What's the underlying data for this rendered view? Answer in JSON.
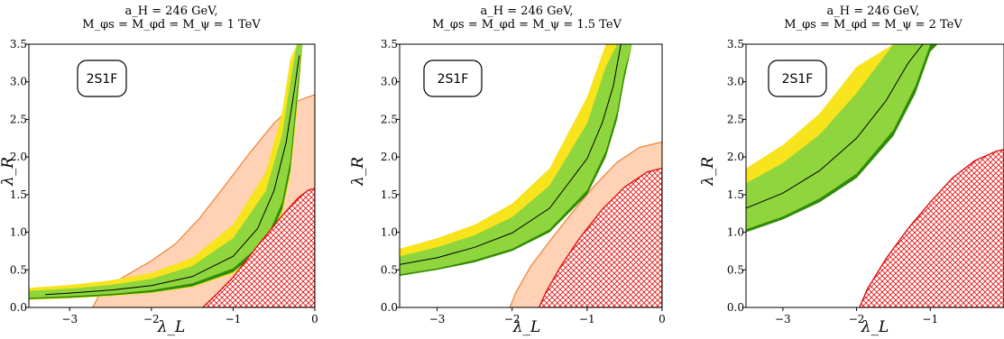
{
  "chart_data": [
    {
      "type": "area",
      "title": [
        "a_H = 246 GeV,",
        "M_φs = M_φd = M_ψ = 1 TeV"
      ],
      "badge": "2S1F",
      "xlabel": "λ_L",
      "ylabel": "λ_R",
      "xlim": [
        -3.5,
        0
      ],
      "ylim": [
        0,
        3.5
      ],
      "xticks": [
        -3,
        -2,
        -1,
        0
      ],
      "xtick_labels": [
        "−3",
        "−2",
        "−1",
        "0"
      ],
      "yticks": [
        0,
        0.5,
        1,
        1.5,
        2,
        2.5,
        3,
        3.5
      ],
      "ytick_labels": [
        "0.0",
        "0.5",
        "1.0",
        "1.5",
        "2.0",
        "2.5",
        "3.0",
        "3.5"
      ],
      "series": [
        {
          "role": "band_yellow",
          "color": "#f7e41c",
          "x": [
            -3.5,
            -3.0,
            -2.5,
            -2.0,
            -1.5,
            -1.0,
            -0.6,
            -0.4,
            -0.3,
            -0.22,
            -0.15
          ],
          "lo": [
            0.1,
            0.12,
            0.15,
            0.19,
            0.27,
            0.45,
            0.8,
            1.25,
            1.75,
            2.6,
            3.5
          ],
          "hi": [
            0.26,
            0.3,
            0.36,
            0.46,
            0.66,
            1.1,
            1.8,
            2.6,
            3.3,
            3.5,
            3.5
          ]
        },
        {
          "role": "band_green",
          "color": "#8fd63e",
          "x": [
            -3.5,
            -3.0,
            -2.5,
            -2.0,
            -1.5,
            -1.0,
            -0.6,
            -0.4,
            -0.3,
            -0.22,
            -0.15
          ],
          "lo": [
            0.13,
            0.15,
            0.18,
            0.23,
            0.32,
            0.52,
            0.9,
            1.4,
            1.95,
            2.85,
            3.5
          ],
          "hi": [
            0.22,
            0.25,
            0.3,
            0.38,
            0.55,
            0.92,
            1.55,
            2.3,
            3.0,
            3.5,
            3.5
          ]
        },
        {
          "role": "band_darkgreen",
          "color": "#2e8b0c",
          "x": [
            -3.5,
            -3.0,
            -2.5,
            -2.0,
            -1.5,
            -1.0,
            -0.6,
            -0.4,
            -0.3,
            -0.22,
            -0.15
          ],
          "lo": [
            0.11,
            0.13,
            0.16,
            0.2,
            0.28,
            0.47,
            0.83,
            1.3,
            1.82,
            2.7,
            3.5
          ],
          "hi": [
            0.13,
            0.15,
            0.18,
            0.23,
            0.32,
            0.52,
            0.9,
            1.4,
            1.95,
            2.85,
            3.5
          ]
        },
        {
          "role": "central_line",
          "color": "#000000",
          "x": [
            -3.3,
            -3.0,
            -2.5,
            -2.0,
            -1.5,
            -1.0,
            -0.7,
            -0.5,
            -0.35,
            -0.25,
            -0.19
          ],
          "y": [
            0.17,
            0.19,
            0.23,
            0.29,
            0.41,
            0.68,
            1.05,
            1.55,
            2.2,
            2.9,
            3.35
          ]
        },
        {
          "role": "orange_region",
          "color": "#ffc9a8",
          "edge": "#f08030",
          "points": [
            [
              -2.72,
              0.0
            ],
            [
              -2.62,
              0.2
            ],
            [
              -2.35,
              0.4
            ],
            [
              -2.0,
              0.62
            ],
            [
              -1.7,
              0.85
            ],
            [
              -1.4,
              1.2
            ],
            [
              -1.1,
              1.62
            ],
            [
              -0.8,
              2.05
            ],
            [
              -0.5,
              2.45
            ],
            [
              -0.2,
              2.75
            ],
            [
              0.0,
              2.83
            ],
            [
              0.0,
              0.0
            ]
          ]
        },
        {
          "role": "red_hatched",
          "color": "#e01010",
          "points": [
            [
              -1.37,
              0.0
            ],
            [
              -1.2,
              0.18
            ],
            [
              -1.0,
              0.4
            ],
            [
              -0.7,
              0.82
            ],
            [
              -0.4,
              1.22
            ],
            [
              -0.2,
              1.46
            ],
            [
              -0.08,
              1.56
            ],
            [
              0.0,
              1.58
            ],
            [
              0.0,
              0.0
            ]
          ]
        }
      ]
    },
    {
      "type": "area",
      "title": [
        "a_H = 246 GeV,",
        "M_φs = M_φd = M_ψ = 1.5 TeV"
      ],
      "badge": "2S1F",
      "xlabel": "λ_L",
      "ylabel": "λ_R",
      "xlim": [
        -3.5,
        0
      ],
      "ylim": [
        0,
        3.5
      ],
      "xticks": [
        -3,
        -2,
        -1,
        0
      ],
      "xtick_labels": [
        "−3",
        "−2",
        "−1",
        "0"
      ],
      "yticks": [
        0,
        0.5,
        1,
        1.5,
        2,
        2.5,
        3,
        3.5
      ],
      "ytick_labels": [
        "0.0",
        "0.5",
        "1.0",
        "1.5",
        "2.0",
        "2.5",
        "3.0",
        "3.5"
      ],
      "series": [
        {
          "role": "band_yellow",
          "color": "#f7e41c",
          "x": [
            -3.5,
            -3.0,
            -2.5,
            -2.0,
            -1.5,
            -1.0,
            -0.75,
            -0.6,
            -0.5,
            -0.4
          ],
          "lo": [
            0.42,
            0.5,
            0.6,
            0.75,
            1.0,
            1.5,
            2.0,
            2.5,
            3.05,
            3.5
          ],
          "hi": [
            0.78,
            0.92,
            1.1,
            1.38,
            1.85,
            2.8,
            3.5,
            3.5,
            3.5,
            3.5
          ]
        },
        {
          "role": "band_green",
          "color": "#8fd63e",
          "x": [
            -3.5,
            -3.0,
            -2.5,
            -2.0,
            -1.5,
            -1.0,
            -0.75,
            -0.6,
            -0.5,
            -0.4
          ],
          "lo": [
            0.44,
            0.52,
            0.63,
            0.78,
            1.04,
            1.56,
            2.08,
            2.6,
            3.15,
            3.5
          ],
          "hi": [
            0.68,
            0.8,
            0.96,
            1.2,
            1.62,
            2.45,
            3.2,
            3.5,
            3.5,
            3.5
          ]
        },
        {
          "role": "band_darkgreen",
          "color": "#2e8b0c",
          "x": [
            -3.5,
            -3.0,
            -2.5,
            -2.0,
            -1.5,
            -1.0,
            -0.75,
            -0.6,
            -0.5,
            -0.4
          ],
          "lo": [
            0.42,
            0.5,
            0.6,
            0.75,
            1.0,
            1.5,
            2.0,
            2.5,
            3.05,
            3.5
          ],
          "hi": [
            0.44,
            0.52,
            0.63,
            0.78,
            1.04,
            1.56,
            2.08,
            2.6,
            3.15,
            3.5
          ]
        },
        {
          "role": "central_line",
          "color": "#000000",
          "x": [
            -3.5,
            -3.0,
            -2.5,
            -2.0,
            -1.5,
            -1.0,
            -0.8,
            -0.65,
            -0.55
          ],
          "y": [
            0.57,
            0.66,
            0.8,
            0.99,
            1.32,
            1.98,
            2.45,
            2.95,
            3.5
          ]
        },
        {
          "role": "orange_region",
          "color": "#ffc9a8",
          "edge": "#f08030",
          "points": [
            [
              -2.03,
              0.0
            ],
            [
              -1.95,
              0.2
            ],
            [
              -1.75,
              0.55
            ],
            [
              -1.5,
              0.88
            ],
            [
              -1.2,
              1.26
            ],
            [
              -0.9,
              1.62
            ],
            [
              -0.6,
              1.93
            ],
            [
              -0.3,
              2.13
            ],
            [
              0.0,
              2.2
            ],
            [
              0.0,
              0.0
            ]
          ]
        },
        {
          "role": "red_hatched",
          "color": "#e01010",
          "points": [
            [
              -1.64,
              0.0
            ],
            [
              -1.55,
              0.2
            ],
            [
              -1.35,
              0.55
            ],
            [
              -1.1,
              0.92
            ],
            [
              -0.8,
              1.3
            ],
            [
              -0.5,
              1.6
            ],
            [
              -0.2,
              1.8
            ],
            [
              0.0,
              1.85
            ],
            [
              0.0,
              0.0
            ]
          ]
        }
      ]
    },
    {
      "type": "area",
      "title": [
        "a_H = 246 GeV,",
        "M_φs = M_φd = M_ψ = 2 TeV"
      ],
      "badge": "2S1F",
      "xlabel": "λ_L",
      "ylabel": "λ_R",
      "xlim": [
        -3.5,
        0
      ],
      "ylim": [
        0,
        3.5
      ],
      "xticks": [
        -3,
        -2,
        -1
      ],
      "xtick_labels": [
        "−3",
        "−2",
        "−1"
      ],
      "yticks": [
        0,
        0.5,
        1,
        1.5,
        2,
        2.5,
        3,
        3.5
      ],
      "ytick_labels": [
        "0.0",
        "0.5",
        "1.0",
        "1.5",
        "2.0",
        "2.5",
        "3.0",
        "3.5"
      ],
      "series": [
        {
          "role": "band_yellow",
          "color": "#f7e41c",
          "x": [
            -3.5,
            -3.0,
            -2.5,
            -2.0,
            -1.5,
            -1.2,
            -1.0,
            -0.9,
            -0.8
          ],
          "lo": [
            1.0,
            1.17,
            1.4,
            1.72,
            2.28,
            2.85,
            3.4,
            3.5,
            3.5
          ],
          "hi": [
            1.85,
            2.16,
            2.58,
            3.2,
            3.5,
            3.5,
            3.5,
            3.5,
            3.5
          ]
        },
        {
          "role": "band_green",
          "color": "#8fd63e",
          "x": [
            -3.5,
            -3.0,
            -2.5,
            -2.0,
            -1.5,
            -1.2,
            -1.0,
            -0.9,
            -0.8
          ],
          "lo": [
            1.04,
            1.21,
            1.45,
            1.78,
            2.36,
            2.95,
            3.5,
            3.5,
            3.5
          ],
          "hi": [
            1.65,
            1.92,
            2.3,
            2.85,
            3.5,
            3.5,
            3.5,
            3.5,
            3.5
          ]
        },
        {
          "role": "band_darkgreen",
          "color": "#2e8b0c",
          "x": [
            -3.5,
            -3.0,
            -2.5,
            -2.0,
            -1.5,
            -1.2,
            -1.0,
            -0.9,
            -0.8
          ],
          "lo": [
            1.0,
            1.17,
            1.4,
            1.72,
            2.28,
            2.85,
            3.4,
            3.5,
            3.5
          ],
          "hi": [
            1.04,
            1.21,
            1.45,
            1.78,
            2.36,
            2.95,
            3.5,
            3.5,
            3.5
          ]
        },
        {
          "role": "central_line",
          "color": "#000000",
          "x": [
            -3.5,
            -3.0,
            -2.5,
            -2.0,
            -1.6,
            -1.3,
            -1.1
          ],
          "y": [
            1.32,
            1.52,
            1.82,
            2.25,
            2.75,
            3.25,
            3.5
          ]
        },
        {
          "role": "red_hatched",
          "color": "#e01010",
          "points": [
            [
              -1.96,
              0.0
            ],
            [
              -1.85,
              0.25
            ],
            [
              -1.6,
              0.65
            ],
            [
              -1.3,
              1.05
            ],
            [
              -1.0,
              1.4
            ],
            [
              -0.7,
              1.72
            ],
            [
              -0.4,
              1.95
            ],
            [
              -0.1,
              2.08
            ],
            [
              0.0,
              2.1
            ],
            [
              0.0,
              0.0
            ]
          ]
        }
      ]
    }
  ]
}
